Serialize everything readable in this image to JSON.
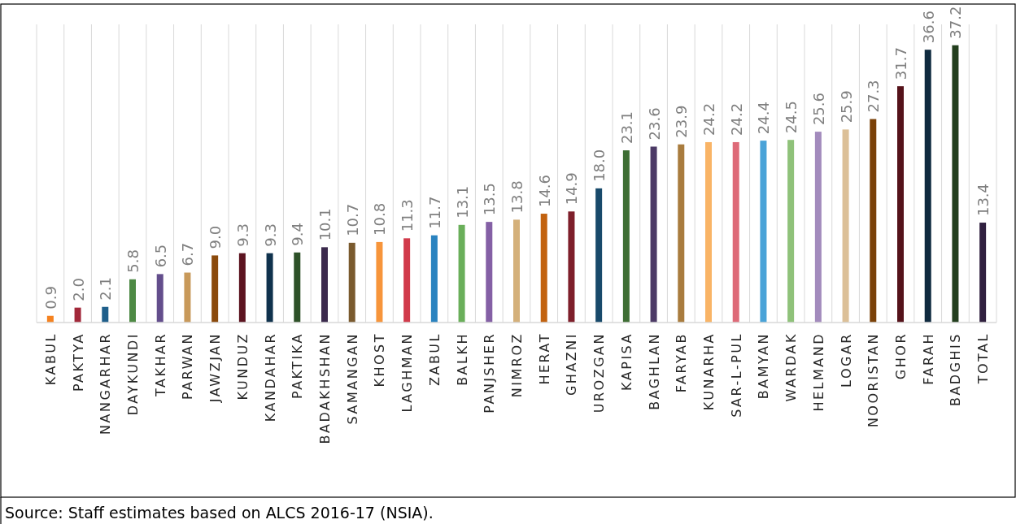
{
  "chart_data": {
    "type": "bar",
    "categories": [
      "KABUL",
      "PAKTYA",
      "NANGARHAR",
      "DAYKUNDI",
      "TAKHAR",
      "PARWAN",
      "JAWZJAN",
      "KUNDUZ",
      "KANDAHAR",
      "PAKTIKA",
      "BADAKHSHAN",
      "SAMANGAN",
      "KHOST",
      "LAGHMAN",
      "ZABUL",
      "BALKH",
      "PANJSHER",
      "NIMROZ",
      "HERAT",
      "GHAZNI",
      "UROZGAN",
      "KAPISA",
      "BAGHLAN",
      "FARYAB",
      "KUNARHA",
      "SAR-L-PUL",
      "BAMYAN",
      "WARDAK",
      "HELMAND",
      "LOGAR",
      "NOORISTAN",
      "GHOR",
      "FARAH",
      "BADGHIS",
      "TOTAL"
    ],
    "values": [
      0.9,
      2.0,
      2.1,
      5.8,
      6.5,
      6.7,
      9.0,
      9.3,
      9.3,
      9.4,
      10.1,
      10.7,
      10.8,
      11.3,
      11.7,
      13.1,
      13.5,
      13.8,
      14.6,
      14.9,
      18.0,
      23.1,
      23.6,
      23.9,
      24.2,
      24.2,
      24.4,
      24.5,
      25.6,
      25.9,
      27.3,
      31.7,
      36.6,
      37.2,
      13.4
    ],
    "value_labels": [
      "0.9",
      "2.0",
      "2.1",
      "5.8",
      "6.5",
      "6.7",
      "9.0",
      "9.3",
      "9.3",
      "9.4",
      "10.1",
      "10.7",
      "10.8",
      "11.3",
      "11.7",
      "13.1",
      "13.5",
      "13.8",
      "14.6",
      "14.9",
      "18.0",
      "23.1",
      "23.6",
      "23.9",
      "24.2",
      "24.2",
      "24.4",
      "24.5",
      "25.6",
      "25.9",
      "27.3",
      "31.7",
      "36.6",
      "37.2",
      "13.4"
    ],
    "colors": [
      "#f58220",
      "#a2283a",
      "#1f5f8b",
      "#4e8a45",
      "#634e8c",
      "#c8995a",
      "#8b4a0c",
      "#5c1420",
      "#10324d",
      "#2d5128",
      "#3b2a4d",
      "#7a5a2e",
      "#f7953b",
      "#d13a4a",
      "#2a83c0",
      "#6aaf5a",
      "#8460a5",
      "#d4b07a",
      "#c2620f",
      "#7e1f2b",
      "#184a6b",
      "#3e6e34",
      "#4c3a66",
      "#a97c3e",
      "#f9b466",
      "#de6a78",
      "#4aa3d8",
      "#8fc27a",
      "#a38bbd",
      "#dcc098",
      "#7a4108",
      "#55121a",
      "#0f2a3f",
      "#233f1e",
      "#30203f"
    ],
    "ylim": [
      0,
      40
    ],
    "tick_labels": "x",
    "grid": "x",
    "annotations": [
      "Source: Staff estimates based on ALCS 2016-17 (NSIA)."
    ]
  }
}
